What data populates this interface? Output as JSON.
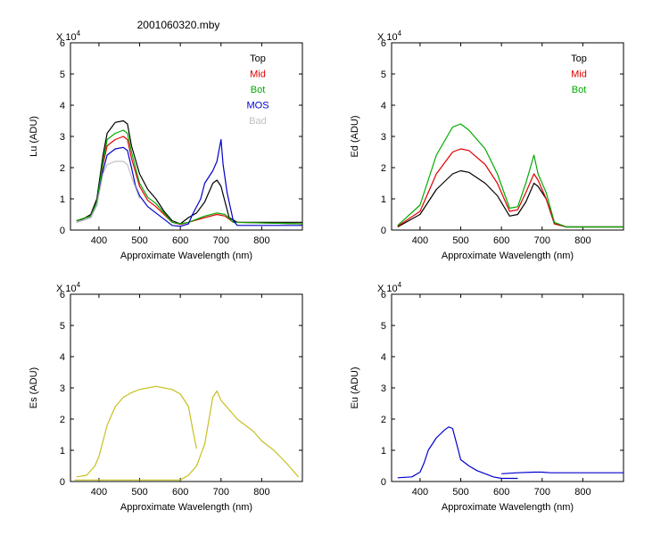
{
  "title": "2001060320.mby",
  "chart_data": [
    {
      "id": "lu",
      "type": "line",
      "ylabel": "Lu (ADU)",
      "xlabel": "Approximate Wavelength (nm)",
      "exponent_label": "X 10^4",
      "xlim": [
        330,
        900
      ],
      "ylim": [
        0,
        6
      ],
      "xticks": [
        400,
        500,
        600,
        700,
        800
      ],
      "yticks": [
        0,
        1,
        2,
        3,
        4,
        5,
        6
      ],
      "legend_position": "top-right",
      "series": [
        {
          "name": "Top",
          "color": "#000000",
          "values": [
            [
              345,
              0.3
            ],
            [
              360,
              0.35
            ],
            [
              380,
              0.5
            ],
            [
              395,
              1.0
            ],
            [
              410,
              2.4
            ],
            [
              420,
              3.1
            ],
            [
              440,
              3.45
            ],
            [
              460,
              3.5
            ],
            [
              470,
              3.4
            ],
            [
              480,
              2.7
            ],
            [
              500,
              1.8
            ],
            [
              520,
              1.3
            ],
            [
              540,
              1.0
            ],
            [
              560,
              0.6
            ],
            [
              580,
              0.3
            ],
            [
              600,
              0.2
            ],
            [
              610,
              0.3
            ],
            [
              620,
              0.4
            ],
            [
              640,
              0.55
            ],
            [
              660,
              0.9
            ],
            [
              680,
              1.5
            ],
            [
              690,
              1.6
            ],
            [
              700,
              1.4
            ],
            [
              710,
              0.9
            ],
            [
              720,
              0.4
            ],
            [
              740,
              0.25
            ],
            [
              900,
              0.25
            ]
          ]
        },
        {
          "name": "Mid",
          "color": "#e00000",
          "values": [
            [
              345,
              0.3
            ],
            [
              380,
              0.45
            ],
            [
              395,
              0.9
            ],
            [
              410,
              2.1
            ],
            [
              420,
              2.7
            ],
            [
              440,
              2.9
            ],
            [
              460,
              3.0
            ],
            [
              470,
              2.9
            ],
            [
              480,
              2.3
            ],
            [
              500,
              1.4
            ],
            [
              520,
              0.95
            ],
            [
              540,
              0.75
            ],
            [
              560,
              0.5
            ],
            [
              580,
              0.25
            ],
            [
              600,
              0.18
            ],
            [
              620,
              0.25
            ],
            [
              660,
              0.4
            ],
            [
              690,
              0.5
            ],
            [
              710,
              0.45
            ],
            [
              730,
              0.25
            ],
            [
              900,
              0.2
            ]
          ]
        },
        {
          "name": "Bot",
          "color": "#00aa00",
          "values": [
            [
              345,
              0.3
            ],
            [
              380,
              0.45
            ],
            [
              395,
              0.9
            ],
            [
              410,
              2.2
            ],
            [
              420,
              2.9
            ],
            [
              440,
              3.1
            ],
            [
              460,
              3.2
            ],
            [
              470,
              3.1
            ],
            [
              480,
              2.5
            ],
            [
              500,
              1.5
            ],
            [
              520,
              1.05
            ],
            [
              540,
              0.85
            ],
            [
              560,
              0.55
            ],
            [
              580,
              0.25
            ],
            [
              600,
              0.2
            ],
            [
              620,
              0.25
            ],
            [
              660,
              0.45
            ],
            [
              690,
              0.55
            ],
            [
              710,
              0.5
            ],
            [
              730,
              0.25
            ],
            [
              900,
              0.2
            ]
          ]
        },
        {
          "name": "MOS",
          "color": "#0000cc",
          "values": [
            [
              345,
              0.25
            ],
            [
              380,
              0.4
            ],
            [
              395,
              0.8
            ],
            [
              410,
              1.9
            ],
            [
              420,
              2.4
            ],
            [
              440,
              2.6
            ],
            [
              460,
              2.65
            ],
            [
              470,
              2.55
            ],
            [
              480,
              2.0
            ],
            [
              490,
              1.4
            ],
            [
              500,
              1.1
            ],
            [
              520,
              0.75
            ],
            [
              540,
              0.55
            ],
            [
              560,
              0.35
            ],
            [
              580,
              0.15
            ],
            [
              600,
              0.12
            ],
            [
              620,
              0.2
            ],
            [
              630,
              0.5
            ],
            [
              650,
              1.0
            ],
            [
              660,
              1.5
            ],
            [
              680,
              1.9
            ],
            [
              690,
              2.2
            ],
            [
              700,
              2.9
            ],
            [
              705,
              2.1
            ],
            [
              715,
              1.2
            ],
            [
              730,
              0.3
            ],
            [
              740,
              0.15
            ],
            [
              900,
              0.15
            ]
          ]
        },
        {
          "name": "Bad",
          "color": "#c0c0c0",
          "values": [
            [
              345,
              0.25
            ],
            [
              380,
              0.4
            ],
            [
              395,
              0.8
            ],
            [
              410,
              1.8
            ],
            [
              420,
              2.1
            ],
            [
              440,
              2.2
            ],
            [
              460,
              2.2
            ],
            [
              470,
              2.1
            ],
            [
              480,
              1.7
            ],
            [
              500,
              1.0
            ]
          ]
        }
      ]
    },
    {
      "id": "ed",
      "type": "line",
      "ylabel": "Ed  (ADU)",
      "xlabel": "Approximate Wavelength (nm)",
      "exponent_label": "X 10^4",
      "xlim": [
        330,
        900
      ],
      "ylim": [
        0,
        6
      ],
      "xticks": [
        400,
        500,
        600,
        700,
        800
      ],
      "yticks": [
        0,
        1,
        2,
        3,
        4,
        5,
        6
      ],
      "legend_position": "top-right",
      "series": [
        {
          "name": "Top",
          "color": "#000000",
          "values": [
            [
              345,
              0.1
            ],
            [
              400,
              0.5
            ],
            [
              440,
              1.3
            ],
            [
              480,
              1.8
            ],
            [
              500,
              1.9
            ],
            [
              520,
              1.85
            ],
            [
              560,
              1.5
            ],
            [
              590,
              1.1
            ],
            [
              620,
              0.45
            ],
            [
              640,
              0.5
            ],
            [
              660,
              0.9
            ],
            [
              680,
              1.5
            ],
            [
              690,
              1.4
            ],
            [
              710,
              1.0
            ],
            [
              730,
              0.2
            ],
            [
              760,
              0.1
            ],
            [
              900,
              0.1
            ]
          ]
        },
        {
          "name": "Mid",
          "color": "#e00000",
          "values": [
            [
              345,
              0.12
            ],
            [
              400,
              0.6
            ],
            [
              440,
              1.8
            ],
            [
              480,
              2.5
            ],
            [
              500,
              2.6
            ],
            [
              520,
              2.55
            ],
            [
              560,
              2.1
            ],
            [
              590,
              1.5
            ],
            [
              620,
              0.6
            ],
            [
              640,
              0.65
            ],
            [
              660,
              1.2
            ],
            [
              680,
              1.8
            ],
            [
              690,
              1.6
            ],
            [
              710,
              1.0
            ],
            [
              730,
              0.2
            ],
            [
              760,
              0.1
            ],
            [
              900,
              0.1
            ]
          ]
        },
        {
          "name": "Bot",
          "color": "#00aa00",
          "values": [
            [
              345,
              0.15
            ],
            [
              400,
              0.8
            ],
            [
              440,
              2.4
            ],
            [
              480,
              3.3
            ],
            [
              500,
              3.4
            ],
            [
              520,
              3.2
            ],
            [
              560,
              2.6
            ],
            [
              590,
              1.8
            ],
            [
              620,
              0.7
            ],
            [
              640,
              0.75
            ],
            [
              660,
              1.5
            ],
            [
              680,
              2.4
            ],
            [
              690,
              1.8
            ],
            [
              710,
              1.2
            ],
            [
              730,
              0.25
            ],
            [
              760,
              0.1
            ],
            [
              900,
              0.1
            ]
          ]
        }
      ]
    },
    {
      "id": "es",
      "type": "line",
      "ylabel": "Es  (ADU)",
      "xlabel": "Approximate Wavelength (nm)",
      "exponent_label": "X 10^4",
      "xlim": [
        330,
        900
      ],
      "ylim": [
        0,
        6
      ],
      "xticks": [
        400,
        500,
        600,
        700,
        800
      ],
      "yticks": [
        0,
        1,
        2,
        3,
        4,
        5,
        6
      ],
      "series": [
        {
          "color": "#c8c020",
          "values": [
            [
              345,
              0.15
            ],
            [
              370,
              0.2
            ],
            [
              390,
              0.5
            ],
            [
              400,
              0.8
            ],
            [
              420,
              1.8
            ],
            [
              440,
              2.4
            ],
            [
              460,
              2.7
            ],
            [
              480,
              2.85
            ],
            [
              500,
              2.95
            ],
            [
              520,
              3.0
            ],
            [
              540,
              3.05
            ],
            [
              560,
              3.0
            ],
            [
              580,
              2.95
            ],
            [
              600,
              2.8
            ],
            [
              620,
              2.4
            ],
            [
              630,
              1.7
            ],
            [
              640,
              1.05
            ]
          ]
        },
        {
          "color": "#c8c020",
          "values": [
            [
              340,
              0.05
            ],
            [
              600,
              0.05
            ],
            [
              620,
              0.2
            ],
            [
              640,
              0.5
            ],
            [
              660,
              1.2
            ],
            [
              680,
              2.7
            ],
            [
              690,
              2.9
            ],
            [
              700,
              2.6
            ],
            [
              720,
              2.3
            ],
            [
              740,
              2.0
            ],
            [
              760,
              1.8
            ],
            [
              780,
              1.6
            ],
            [
              800,
              1.3
            ],
            [
              830,
              1.0
            ],
            [
              860,
              0.6
            ],
            [
              880,
              0.3
            ],
            [
              890,
              0.15
            ]
          ]
        }
      ]
    },
    {
      "id": "eu",
      "type": "line",
      "ylabel": "Eu  (ADU)",
      "xlabel": "Approximate Wavelength (nm)",
      "exponent_label": "X 10^4",
      "xlim": [
        330,
        900
      ],
      "ylim": [
        0,
        6
      ],
      "xticks": [
        400,
        500,
        600,
        700,
        800
      ],
      "yticks": [
        0,
        1,
        2,
        3,
        4,
        5,
        6
      ],
      "series": [
        {
          "color": "#0000cc",
          "values": [
            [
              345,
              0.12
            ],
            [
              380,
              0.15
            ],
            [
              400,
              0.3
            ],
            [
              410,
              0.6
            ],
            [
              420,
              1.0
            ],
            [
              440,
              1.4
            ],
            [
              460,
              1.65
            ],
            [
              470,
              1.75
            ],
            [
              480,
              1.7
            ],
            [
              490,
              1.2
            ],
            [
              500,
              0.7
            ],
            [
              520,
              0.5
            ],
            [
              540,
              0.35
            ],
            [
              560,
              0.25
            ],
            [
              580,
              0.15
            ],
            [
              600,
              0.1
            ],
            [
              640,
              0.1
            ]
          ]
        },
        {
          "color": "#0000cc",
          "values": [
            [
              600,
              0.25
            ],
            [
              640,
              0.28
            ],
            [
              680,
              0.3
            ],
            [
              700,
              0.3
            ],
            [
              720,
              0.28
            ],
            [
              900,
              0.28
            ]
          ]
        }
      ]
    }
  ]
}
